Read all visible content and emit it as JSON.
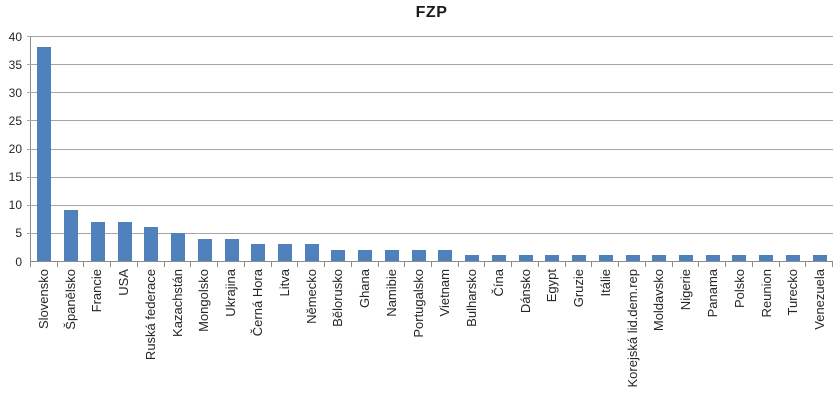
{
  "chart_data": {
    "type": "bar",
    "title": "FZP",
    "xlabel": "",
    "ylabel": "",
    "categories": [
      "Slovensko",
      "Španělsko",
      "Francie",
      "USA",
      "Ruská federace",
      "Kazachstán",
      "Mongolsko",
      "Ukrajina",
      "Černá Hora",
      "Litva",
      "Německo",
      "Bělorusko",
      "Ghana",
      "Namibie",
      "Portugalsko",
      "Vietnam",
      "Bulharsko",
      "Čína",
      "Dánsko",
      "Egypt",
      "Gruzie",
      "Itálie",
      "Korejská lid.dem.rep",
      "Moldavsko",
      "Nigerie",
      "Panama",
      "Polsko",
      "Reunion",
      "Turecko",
      "Venezuela"
    ],
    "values": [
      38,
      9,
      7,
      7,
      6,
      5,
      4,
      4,
      3,
      3,
      3,
      2,
      2,
      2,
      2,
      2,
      1,
      1,
      1,
      1,
      1,
      1,
      1,
      1,
      1,
      1,
      1,
      1,
      1,
      1
    ],
    "ylim": [
      0,
      40
    ],
    "yticks": [
      0,
      5,
      10,
      15,
      20,
      25,
      30,
      35,
      40
    ],
    "grid": true,
    "legend": false,
    "colors": {
      "bar": "#4f81bd",
      "gridline": "#a6a6a6",
      "axis": "#8c8c8c",
      "label": "#262626",
      "title": "#1a1a1a",
      "background": "#ffffff"
    }
  }
}
